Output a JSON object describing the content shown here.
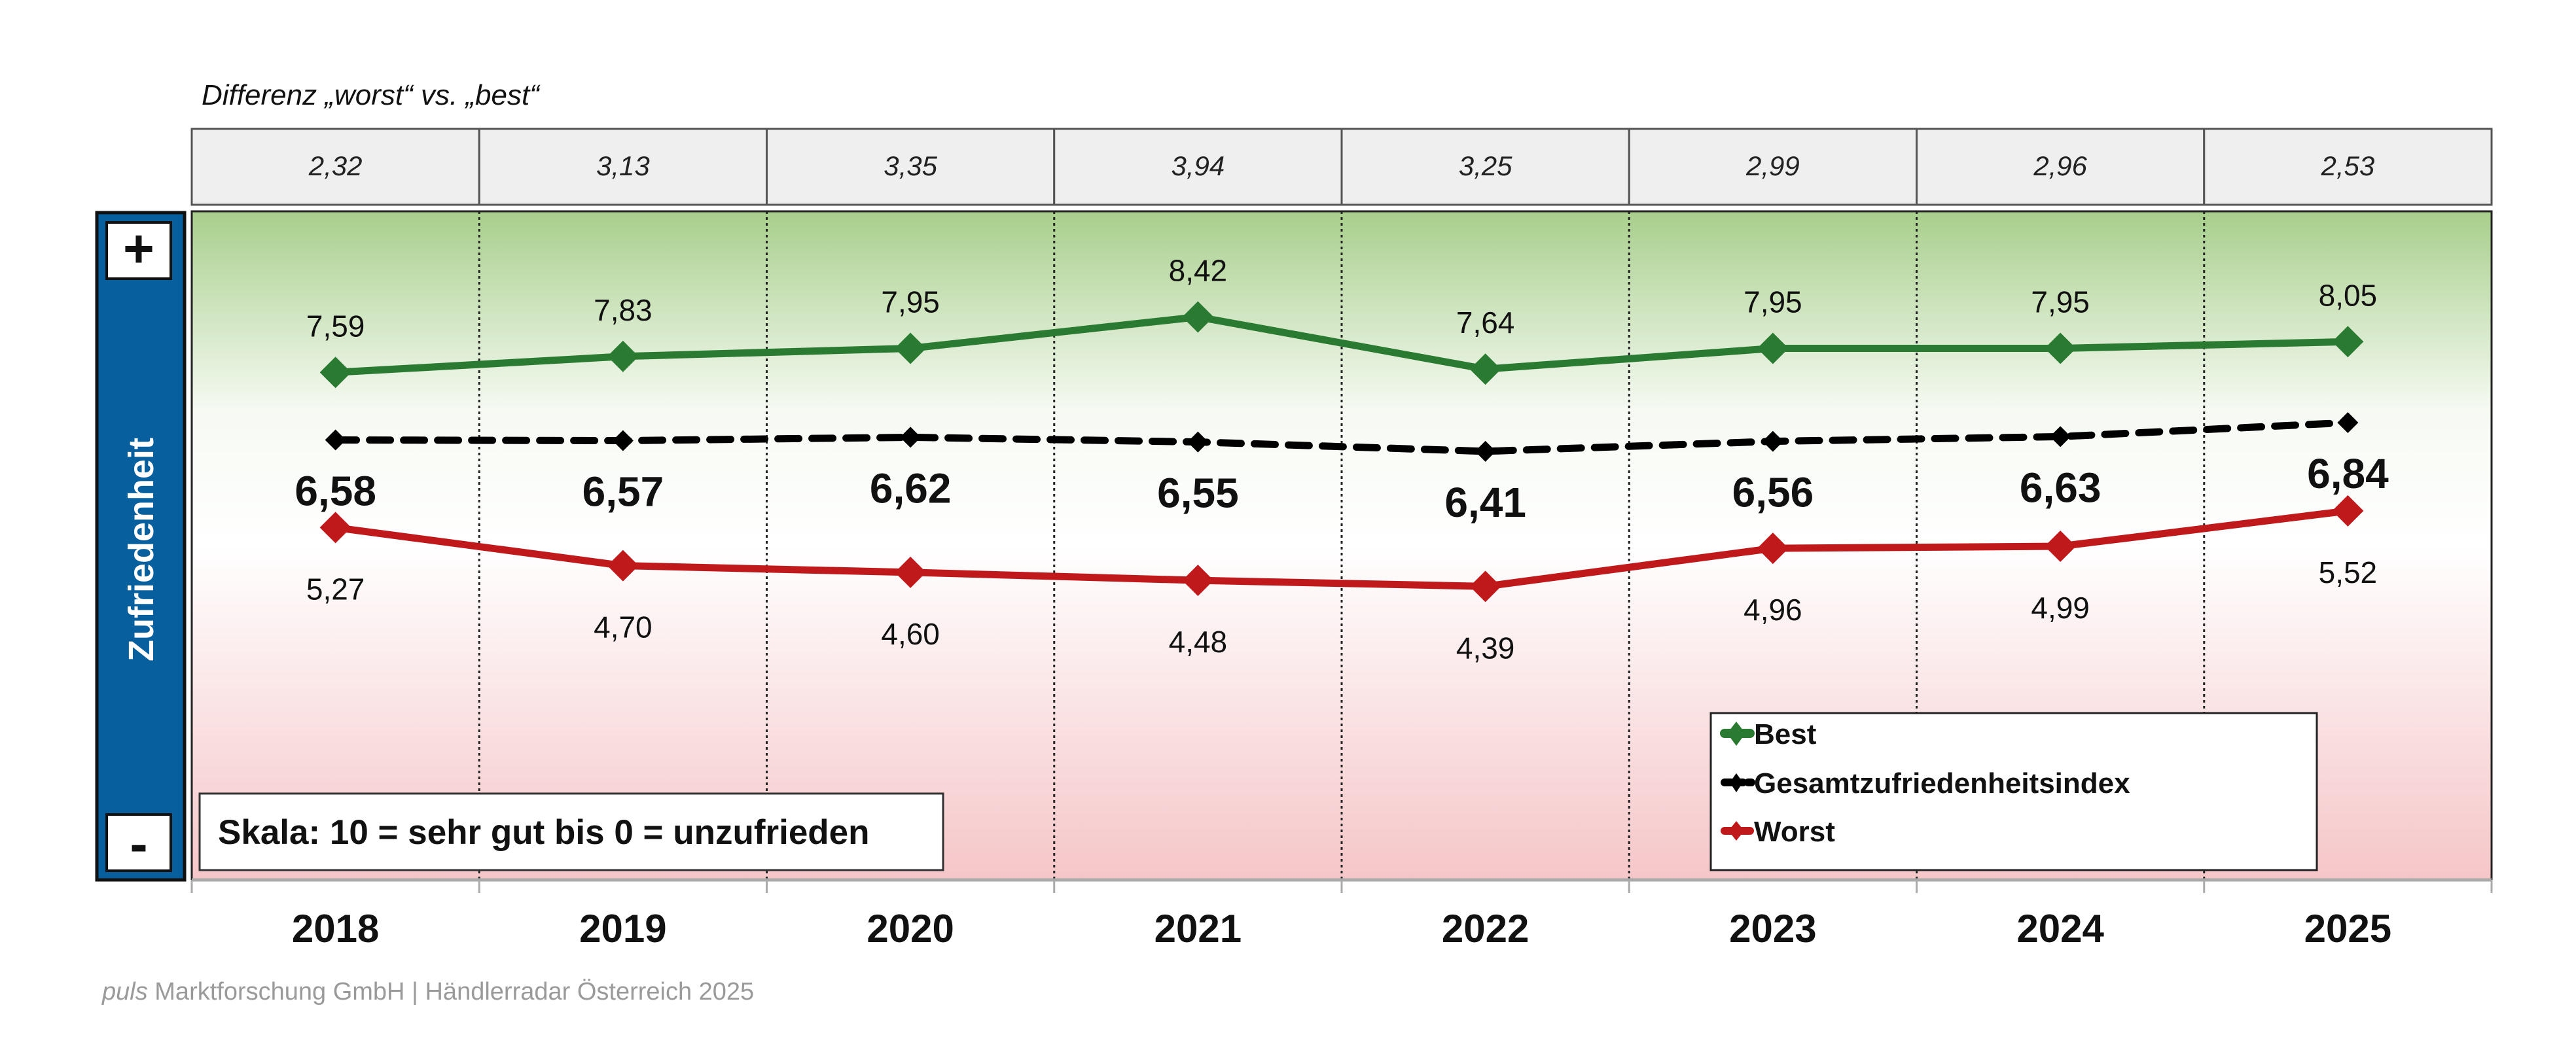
{
  "chart_data": {
    "type": "line",
    "title": "",
    "ylabel": "Zufriedenheit",
    "ylim": [
      0,
      10
    ],
    "grid": "vertical-dotted",
    "legend_placement": "bottom-right",
    "categories": [
      "2018",
      "2019",
      "2020",
      "2021",
      "2022",
      "2023",
      "2024",
      "2025"
    ],
    "series": [
      {
        "name": "Best",
        "color": "#2a7a32",
        "marker": "diamond",
        "style": "solid",
        "values": [
          7.59,
          7.83,
          7.95,
          8.42,
          7.64,
          7.95,
          7.95,
          8.05
        ],
        "labels": [
          "7,59",
          "7,83",
          "7,95",
          "8,42",
          "7,64",
          "7,95",
          "7,95",
          "8,05"
        ]
      },
      {
        "name": "Gesamtzufriedenheitsindex",
        "color": "#000000",
        "marker": "diamond",
        "style": "dashed",
        "values": [
          6.58,
          6.57,
          6.62,
          6.55,
          6.41,
          6.56,
          6.63,
          6.84
        ],
        "labels": [
          "6,58",
          "6,57",
          "6,62",
          "6,55",
          "6,41",
          "6,56",
          "6,63",
          "6,84"
        ]
      },
      {
        "name": "Worst",
        "color": "#c0191b",
        "marker": "diamond",
        "style": "solid",
        "values": [
          5.27,
          4.7,
          4.6,
          4.48,
          4.39,
          4.96,
          4.99,
          5.52
        ],
        "labels": [
          "5,27",
          "4,70",
          "4,60",
          "4,48",
          "4,39",
          "4,96",
          "4,99",
          "5,52"
        ]
      }
    ],
    "difference": {
      "title": "Differenz „worst“ vs. „best“",
      "values": [
        "2,32",
        "3,13",
        "3,35",
        "3,94",
        "3,25",
        "2,99",
        "2,96",
        "2,53"
      ]
    },
    "scale_note": "Skala: 10 = sehr gut bis 0 = unzufrieden",
    "axis_plus": "+",
    "axis_minus": "-",
    "source_italic": "puls",
    "source": " Marktforschung GmbH | Händlerradar Österreich 2025"
  }
}
